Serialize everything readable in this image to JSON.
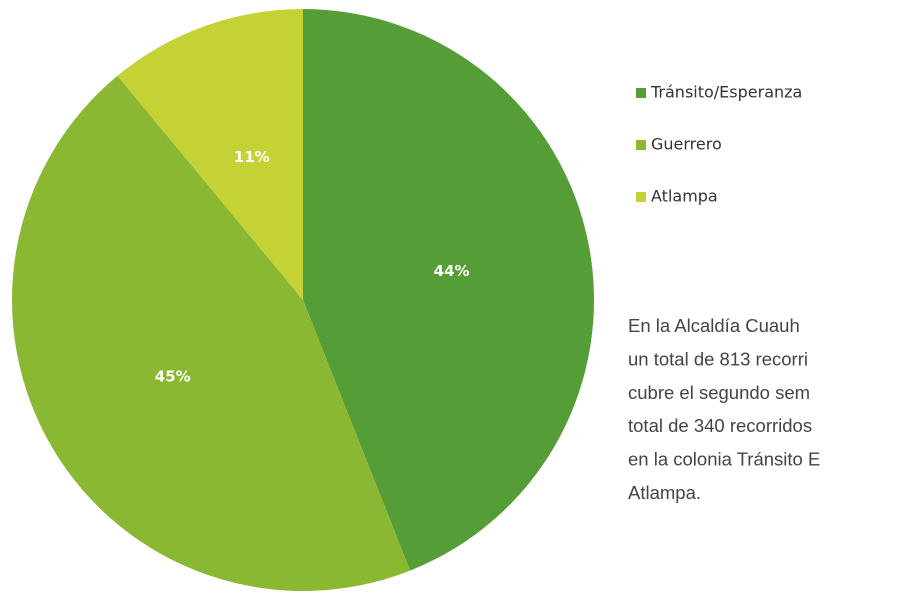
{
  "chart_data": {
    "type": "pie",
    "categories": [
      "Tránsito/Esperanza",
      "Guerrero",
      "Atlampa"
    ],
    "values": [
      44,
      45,
      11
    ],
    "value_labels": [
      "44%",
      "45%",
      "11%"
    ],
    "colors": [
      "#559e37",
      "#8ab833",
      "#c5d235"
    ]
  },
  "text": {
    "lines": [
      "En la Alcaldía Cuauh",
      "un total de 813 recorri",
      "cubre el segundo sem",
      "total de 340 recorridos",
      "en la colonia Tránsito E",
      "Atlampa."
    ]
  }
}
